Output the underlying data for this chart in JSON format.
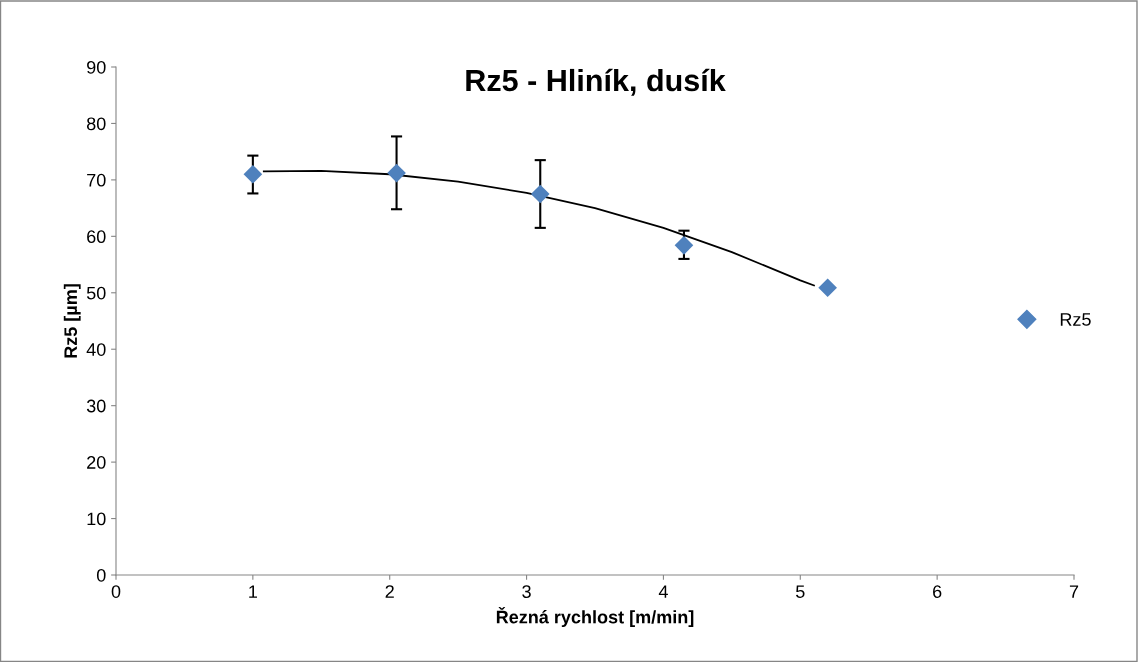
{
  "chart_data": {
    "type": "scatter",
    "title": "Rz5 - Hliník, dusík",
    "xlabel": "Řezná rychlost [m/min]",
    "ylabel": "Rz5 [µm]",
    "xlim": [
      0,
      7
    ],
    "xticks": [
      0,
      1,
      2,
      3,
      4,
      5,
      6,
      7
    ],
    "ylim": [
      0,
      90
    ],
    "yticks": [
      0,
      10,
      20,
      30,
      40,
      50,
      60,
      70,
      80,
      90
    ],
    "grid": false,
    "legend": "right",
    "marker": "diamond",
    "series": [
      {
        "name": "Rz5",
        "color": "#4f81bd",
        "x": [
          1,
          2.05,
          3.1,
          4.15,
          5.2
        ],
        "values": [
          71.0,
          71.2,
          67.5,
          58.4,
          50.9
        ],
        "errors": [
          [
            67.6,
            74.3
          ],
          [
            64.8,
            77.7
          ],
          [
            61.5,
            73.5
          ],
          [
            56.0,
            61.0
          ],
          null
        ]
      },
      {
        "type": "line",
        "color": "#000000",
        "marker": "none",
        "x": [
          1.08,
          1.5,
          2,
          2.5,
          3,
          3.5,
          4,
          4.5,
          5,
          5.1
        ],
        "values": [
          71.5,
          71.6,
          71.0,
          69.7,
          67.7,
          65.0,
          61.5,
          57.2,
          52.2,
          51.3
        ]
      }
    ]
  }
}
